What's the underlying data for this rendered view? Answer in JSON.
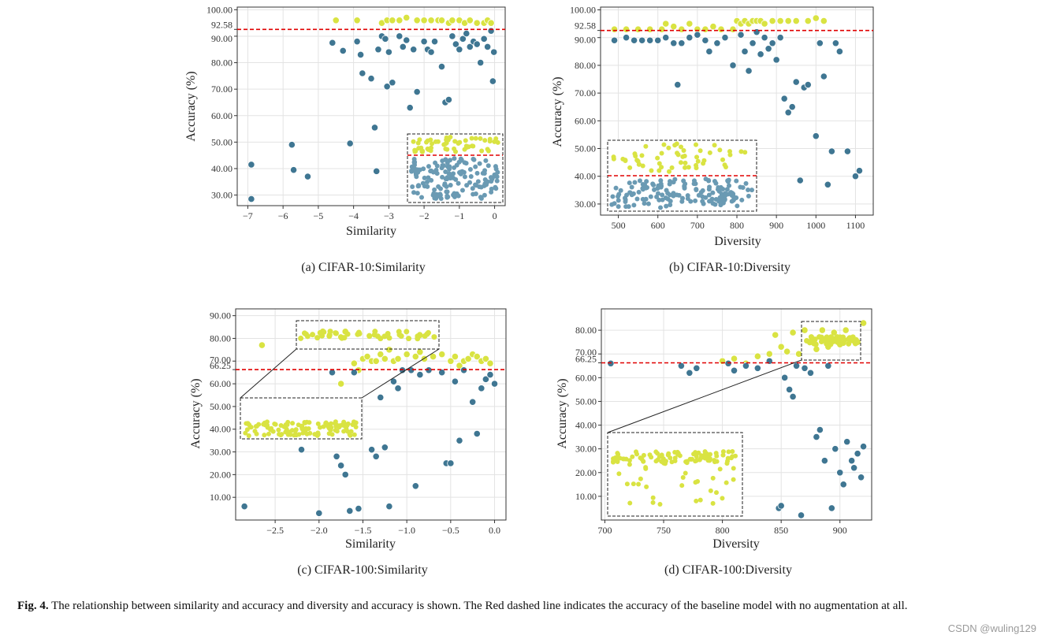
{
  "figure": {
    "caption_label": "Fig. 4.",
    "caption_text": "The relationship between similarity and accuracy and diversity and accuracy is shown. The Red dashed line indicates the accuracy of the baseline model with no augmentation at all.",
    "watermark": "CSDN @wuling129"
  },
  "colors": {
    "yellow_points": "#d9e342",
    "blue_points": "#3f7692",
    "baseline": "#e00000",
    "grid": "#e3e3e3",
    "axis": "#333333"
  },
  "chart_data": [
    {
      "id": "a",
      "type": "scatter",
      "subtitle": "(a) CIFAR-10:Similarity",
      "xlabel": "Similarity",
      "ylabel": "Accuracy (%)",
      "xlim": [
        -7.3,
        0.3
      ],
      "ylim": [
        26,
        101
      ],
      "xticks": [
        -7,
        -6,
        -5,
        -4,
        -3,
        -2,
        -1,
        0
      ],
      "xtick_labels": [
        "−7",
        "−6",
        "−5",
        "−4",
        "−3",
        "−2",
        "−1",
        "0"
      ],
      "yticks": [
        30,
        40,
        50,
        60,
        70,
        80,
        90,
        92.58,
        100
      ],
      "ytick_labels": [
        "30.00",
        "40.00",
        "50.00",
        "60.00",
        "70.00",
        "80.00",
        "90.00",
        "92.58",
        "100.00"
      ],
      "baseline": 92.58,
      "inset": {
        "placement": "bottom-right",
        "connected": false
      },
      "series": [
        {
          "color_key": "yellow_points",
          "x": [
            -4.5,
            -3.9,
            -3.2,
            -3.05,
            -2.9,
            -2.7,
            -2.5,
            -2.2,
            -2.0,
            -1.8,
            -1.6,
            -1.5,
            -1.3,
            -1.2,
            -1.0,
            -0.85,
            -0.7,
            -0.5,
            -0.3,
            -0.2,
            -0.1
          ],
          "y": [
            96,
            96,
            95,
            96,
            96,
            96,
            97,
            96,
            96,
            96,
            96,
            96,
            95,
            96,
            96,
            95,
            96,
            95,
            95,
            96,
            95
          ]
        },
        {
          "color_key": "blue_points",
          "x": [
            -6.9,
            -6.9,
            -5.75,
            -5.7,
            -5.3,
            -4.6,
            -4.3,
            -4.1,
            -3.9,
            -3.8,
            -3.75,
            -3.5,
            -3.4,
            -3.35,
            -3.3,
            -3.2,
            -3.1,
            -3.05,
            -3.0,
            -2.9,
            -2.7,
            -2.6,
            -2.5,
            -2.4,
            -2.3,
            -2.2,
            -2.0,
            -1.9,
            -1.8,
            -1.7,
            -1.5,
            -1.4,
            -1.3,
            -1.2,
            -1.1,
            -1.0,
            -0.9,
            -0.8,
            -0.7,
            -0.6,
            -0.5,
            -0.4,
            -0.3,
            -0.2,
            -0.1,
            -0.05,
            -0.02
          ],
          "y": [
            41.5,
            28.5,
            49,
            39.5,
            37,
            87.5,
            84.5,
            49.5,
            88,
            83,
            76,
            74,
            55.5,
            39,
            85,
            90,
            89,
            71,
            84,
            72.5,
            90,
            86,
            88.5,
            63,
            85,
            69,
            88,
            85,
            84,
            88,
            78.5,
            65,
            66,
            90,
            87,
            85,
            89,
            91,
            86,
            88,
            87,
            80,
            89,
            86,
            92,
            73,
            84
          ]
        }
      ]
    },
    {
      "id": "b",
      "type": "scatter",
      "subtitle": "(b) CIFAR-10:Diversity",
      "xlabel": "Diversity",
      "ylabel": "Accuracy (%)",
      "xlim": [
        455,
        1145
      ],
      "ylim": [
        26,
        101
      ],
      "xticks": [
        500,
        600,
        700,
        800,
        900,
        1000,
        1100
      ],
      "xtick_labels": [
        "500",
        "600",
        "700",
        "800",
        "900",
        "1000",
        "1100"
      ],
      "yticks": [
        30,
        40,
        50,
        60,
        70,
        80,
        90,
        92.58,
        100
      ],
      "ytick_labels": [
        "30.00",
        "40.00",
        "50.00",
        "60.00",
        "70.00",
        "80.00",
        "90.00",
        "92.58",
        "100.00"
      ],
      "baseline": 92.58,
      "inset": {
        "placement": "bottom-left",
        "connected": false
      },
      "series": [
        {
          "color_key": "yellow_points",
          "x": [
            490,
            520,
            550,
            580,
            610,
            620,
            640,
            660,
            680,
            700,
            720,
            740,
            760,
            790,
            800,
            810,
            820,
            830,
            840,
            850,
            860,
            870,
            890,
            910,
            930,
            950,
            980,
            1000,
            1020
          ],
          "y": [
            93,
            93,
            93,
            93,
            93,
            95,
            94,
            93,
            95,
            93,
            93,
            94,
            93,
            93,
            96,
            95,
            96,
            95,
            96,
            96,
            96,
            95,
            96,
            96,
            96,
            96,
            96,
            97,
            96
          ]
        },
        {
          "color_key": "blue_points",
          "x": [
            490,
            520,
            540,
            560,
            580,
            600,
            620,
            640,
            650,
            660,
            680,
            700,
            720,
            730,
            750,
            770,
            790,
            810,
            820,
            830,
            840,
            850,
            860,
            870,
            880,
            890,
            900,
            910,
            920,
            930,
            940,
            950,
            960,
            970,
            980,
            1000,
            1010,
            1020,
            1030,
            1040,
            1050,
            1060,
            1080,
            1100,
            1110
          ],
          "y": [
            89,
            90,
            89,
            89,
            89,
            89,
            90,
            88,
            73,
            88,
            90,
            91,
            89,
            85,
            88,
            90,
            80,
            91,
            85,
            78,
            88,
            92,
            84,
            90,
            86,
            88,
            82,
            90,
            68,
            63,
            65,
            74,
            38.5,
            72,
            73,
            54.5,
            88,
            76,
            37,
            49,
            88,
            85,
            49,
            40,
            42
          ]
        }
      ]
    },
    {
      "id": "c",
      "type": "scatter",
      "subtitle": "(c) CIFAR-100:Similarity",
      "xlabel": "Similarity",
      "ylabel": "Accuracy (%)",
      "xlim": [
        -2.95,
        0.13
      ],
      "ylim": [
        0,
        93
      ],
      "xticks": [
        -2.5,
        -2.0,
        -1.5,
        -1.0,
        -0.5,
        0.0
      ],
      "xtick_labels": [
        "−2.5",
        "−2.0",
        "−1.5",
        "−1.0",
        "−0.5",
        "0.0"
      ],
      "yticks": [
        10,
        20,
        30,
        40,
        50,
        60,
        66.25,
        70,
        80,
        90
      ],
      "ytick_labels": [
        "10.00",
        "20.00",
        "30.00",
        "40.00",
        "50.00",
        "60.00",
        "66.25",
        "70.00",
        "80.00",
        "90.00"
      ],
      "baseline": 66.25,
      "inset": {
        "placement": "left",
        "connected": true
      },
      "series": [
        {
          "color_key": "yellow_points",
          "x": [
            -2.65,
            -1.85,
            -1.75,
            -1.7,
            -1.6,
            -1.55,
            -1.5,
            -1.45,
            -1.4,
            -1.35,
            -1.3,
            -1.25,
            -1.2,
            -1.15,
            -1.1,
            -1.0,
            -0.9,
            -0.85,
            -0.8,
            -0.7,
            -0.6,
            -0.5,
            -0.45,
            -0.4,
            -0.35,
            -0.3,
            -0.25,
            -0.2,
            -0.15,
            -0.1,
            -0.05
          ],
          "y": [
            77,
            65,
            60,
            83,
            69,
            66,
            71,
            72,
            70,
            70,
            73,
            71,
            75,
            70,
            71,
            73,
            72,
            74,
            71,
            72,
            73,
            70,
            72,
            68,
            70,
            71,
            73,
            72,
            70,
            71,
            69
          ]
        },
        {
          "color_key": "blue_points",
          "x": [
            -2.85,
            -2.2,
            -2.0,
            -1.85,
            -1.8,
            -1.75,
            -1.7,
            -1.65,
            -1.6,
            -1.55,
            -1.4,
            -1.35,
            -1.3,
            -1.25,
            -1.2,
            -1.15,
            -1.1,
            -1.05,
            -0.95,
            -0.9,
            -0.85,
            -0.75,
            -0.6,
            -0.55,
            -0.5,
            -0.45,
            -0.4,
            -0.35,
            -0.25,
            -0.2,
            -0.15,
            -0.1,
            -0.05,
            0.0
          ],
          "y": [
            6,
            31,
            3,
            65,
            28,
            24,
            20,
            4,
            65,
            5,
            31,
            28,
            54,
            32,
            6,
            61,
            58,
            66,
            66,
            15,
            64,
            66,
            65,
            25,
            25,
            61,
            35,
            66,
            52,
            38,
            58,
            62,
            64,
            60
          ]
        }
      ]
    },
    {
      "id": "d",
      "type": "scatter",
      "subtitle": "(d) CIFAR-100:Diversity",
      "xlabel": "Diversity",
      "ylabel": "Accuracy (%)",
      "xlim": [
        697,
        927
      ],
      "ylim": [
        0,
        89
      ],
      "xticks": [
        700,
        750,
        800,
        850,
        900
      ],
      "xtick_labels": [
        "700",
        "750",
        "800",
        "850",
        "900"
      ],
      "yticks": [
        10,
        20,
        30,
        40,
        50,
        60,
        66.25,
        70,
        80
      ],
      "ytick_labels": [
        "10.00",
        "20.00",
        "30.00",
        "40.00",
        "50.00",
        "60.00",
        "66.25",
        "70.00",
        "80.00"
      ],
      "baseline": 66.25,
      "inset": {
        "placement": "bottom-left",
        "connected": true
      },
      "series": [
        {
          "color_key": "yellow_points",
          "x": [
            800,
            810,
            820,
            830,
            840,
            845,
            850,
            855,
            860,
            865,
            870,
            875,
            880,
            885,
            890,
            895,
            900,
            905,
            910,
            915,
            920
          ],
          "y": [
            67,
            68,
            66,
            69,
            70,
            78,
            73,
            71,
            79,
            70,
            80,
            75,
            72,
            80,
            73,
            79,
            74,
            80,
            76,
            75,
            83
          ]
        },
        {
          "color_key": "blue_points",
          "x": [
            705,
            765,
            772,
            778,
            805,
            810,
            820,
            830,
            840,
            848,
            850,
            853,
            857,
            860,
            863,
            867,
            870,
            875,
            880,
            883,
            887,
            890,
            893,
            896,
            900,
            903,
            906,
            910,
            912,
            915,
            918,
            920
          ],
          "y": [
            66,
            65,
            62,
            64,
            66,
            63,
            65,
            64,
            67,
            5,
            6,
            60,
            55,
            52,
            65,
            2,
            64,
            62,
            35,
            38,
            25,
            65,
            5,
            30,
            20,
            15,
            33,
            25,
            22,
            28,
            18,
            31
          ]
        }
      ]
    }
  ]
}
